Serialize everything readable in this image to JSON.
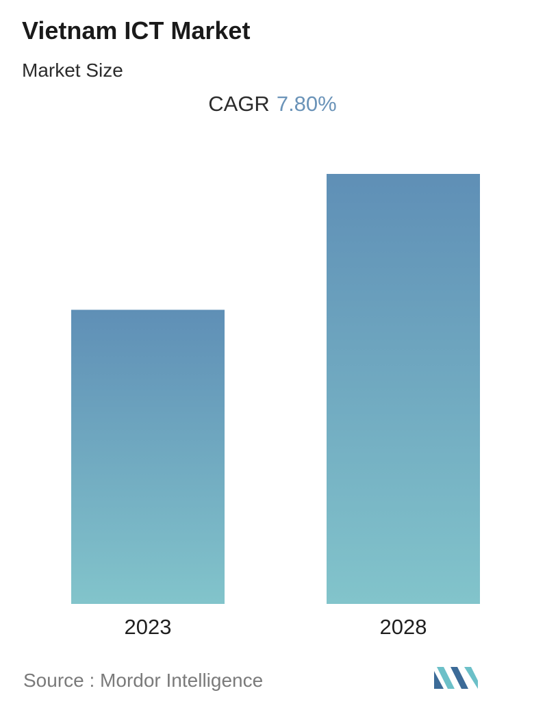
{
  "header": {
    "title": "Vietnam ICT Market",
    "subtitle": "Market Size"
  },
  "cagr": {
    "label": "CAGR",
    "value": "7.80%"
  },
  "chart_data": {
    "type": "bar",
    "title": "Vietnam ICT Market",
    "subtitle": "Market Size",
    "categories": [
      "2023",
      "2028"
    ],
    "values": [
      0.684,
      1.0
    ],
    "value_scale": "relative (2028 = 1.0, no numeric axis shown)",
    "xlabel": "",
    "ylabel": "",
    "grid": false,
    "legend": "none",
    "colors": {
      "bar_top": "#5f8fb6",
      "bar_bottom": "#82c4cb"
    }
  },
  "footer": {
    "source": "Source :  Mordor Intelligence"
  },
  "colors": {
    "accent": "#6a93b8",
    "logo_dark": "#3c6b98",
    "logo_light": "#6cc0c8"
  }
}
